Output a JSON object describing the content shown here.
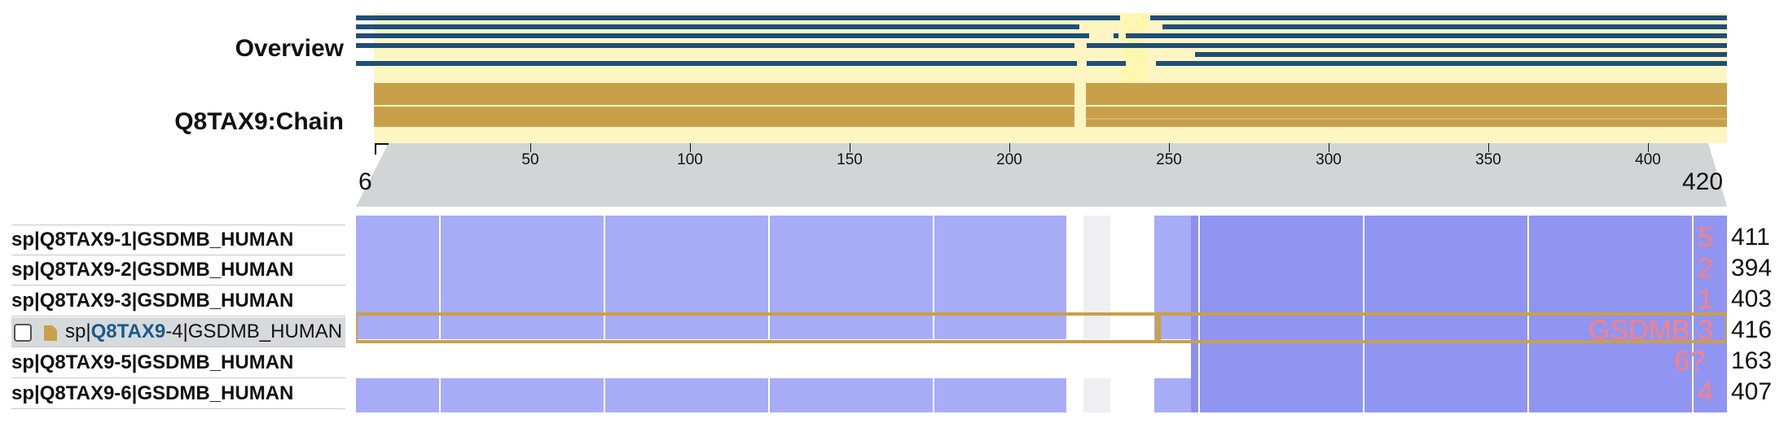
{
  "tracks": {
    "overview_label": "Overview",
    "chain_label": "Q8TAX9:Chain"
  },
  "axis": {
    "start": "6",
    "end": "420",
    "ticks": [
      "50",
      "100",
      "150",
      "200",
      "250",
      "300",
      "350",
      "400"
    ]
  },
  "sequences": [
    {
      "label": "sp|Q8TAX9-1|GSDMB_HUMAN",
      "length": "411",
      "annotation": "5"
    },
    {
      "label": "sp|Q8TAX9-2|GSDMB_HUMAN",
      "length": "394",
      "annotation": "2"
    },
    {
      "label": "sp|Q8TAX9-3|GSDMB_HUMAN",
      "length": "403",
      "annotation": "1"
    },
    {
      "label_prefix": "sp|",
      "label_accession": "Q8TAX9",
      "label_suffix": "-4|GSDMB_HUMAN",
      "length": "416",
      "annotation": "GSDMB 3",
      "selected": true
    },
    {
      "label": "sp|Q8TAX9-5|GSDMB_HUMAN",
      "length": "163",
      "annotation": "6?"
    },
    {
      "label": "sp|Q8TAX9-6|GSDMB_HUMAN",
      "length": "407",
      "annotation": "4"
    }
  ],
  "colors": {
    "overview_line": "#1f4e79",
    "highlight": "#fdf6c3",
    "chain": "#c9a04a",
    "alignment": "#a7acf7",
    "alignment_dark": "#9095f2",
    "accession_link": "#1a5a8a",
    "annotation": "#ff8080"
  },
  "icons": [
    "document-icon"
  ]
}
